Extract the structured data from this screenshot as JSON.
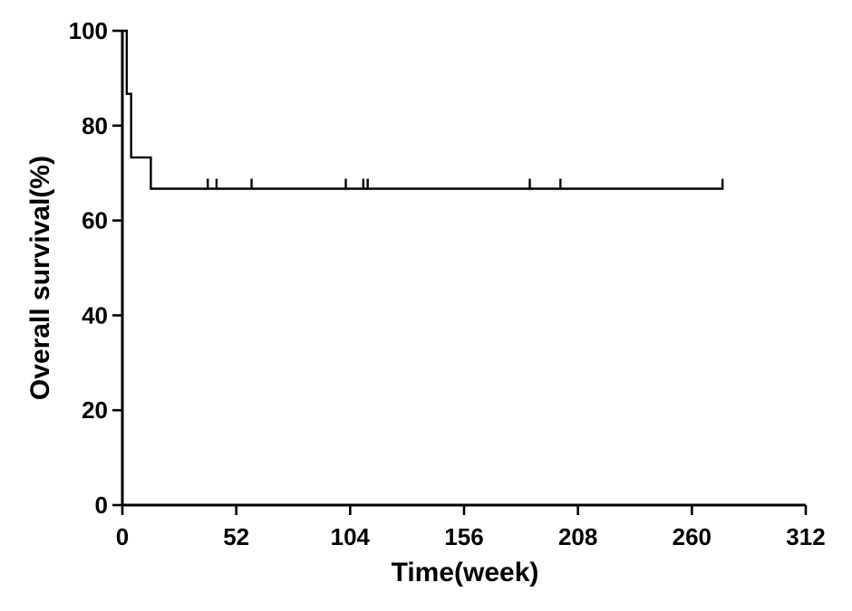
{
  "figure": {
    "background_color": "#ffffff",
    "line_color": "#000000"
  },
  "chart_data": {
    "type": "line",
    "subtype": "kaplan-meier-survival-step",
    "title": "",
    "xlabel": "Time(week)",
    "ylabel": "Overall survival(%)",
    "xlim": [
      0,
      312
    ],
    "ylim": [
      0,
      100
    ],
    "x_ticks": [
      0,
      52,
      104,
      156,
      208,
      260,
      312
    ],
    "y_ticks": [
      0,
      20,
      40,
      60,
      80,
      100
    ],
    "grid": false,
    "legend": false,
    "series": [
      {
        "name": "Overall survival",
        "color": "#000000",
        "step_points": [
          {
            "week": 0,
            "pct": 100
          },
          {
            "week": 2,
            "pct": 100
          },
          {
            "week": 2,
            "pct": 86.7
          },
          {
            "week": 4,
            "pct": 86.7
          },
          {
            "week": 4,
            "pct": 73.3
          },
          {
            "week": 13,
            "pct": 73.3
          },
          {
            "week": 13,
            "pct": 66.7
          },
          {
            "week": 274,
            "pct": 66.7
          }
        ],
        "censor_marks": [
          {
            "week": 39,
            "pct": 66.7
          },
          {
            "week": 43,
            "pct": 66.7
          },
          {
            "week": 59,
            "pct": 66.7
          },
          {
            "week": 102,
            "pct": 66.7
          },
          {
            "week": 110,
            "pct": 66.7
          },
          {
            "week": 112,
            "pct": 66.7
          },
          {
            "week": 186,
            "pct": 66.7
          },
          {
            "week": 200,
            "pct": 66.7
          },
          {
            "week": 274,
            "pct": 66.7
          }
        ]
      }
    ]
  }
}
